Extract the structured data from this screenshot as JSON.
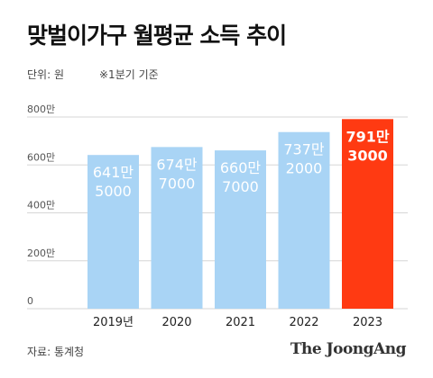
{
  "header": {
    "title": "맞벌이가구 월평균 소득 추이",
    "unit_label": "단위: 원",
    "note_label": "※1분기 기준"
  },
  "footer": {
    "source": "자료: 통계청",
    "brand": "The JoongAng"
  },
  "colors": {
    "bar": "#a9d4f5",
    "highlight": "#ff3a12",
    "bar_label": "#ffffff",
    "grid": "#d6d6d6",
    "axis_text": "#555555"
  },
  "chart_data": {
    "type": "bar",
    "categories": [
      "2019년",
      "2020",
      "2021",
      "2022",
      "2023"
    ],
    "values": [
      6415000,
      6747000,
      6607000,
      7372000,
      7913000
    ],
    "value_labels": [
      [
        "641만",
        "5000"
      ],
      [
        "674만",
        "7000"
      ],
      [
        "660만",
        "7000"
      ],
      [
        "737만",
        "2000"
      ],
      [
        "791만",
        "3000"
      ]
    ],
    "highlight_index": 4,
    "y_ticks": [
      0,
      2000000,
      4000000,
      6000000,
      8000000
    ],
    "y_tick_labels": [
      "0",
      "200만",
      "400만",
      "600만",
      "800만"
    ],
    "ylim": [
      0,
      8000000
    ],
    "grid": true,
    "title": "",
    "xlabel": "",
    "ylabel": ""
  }
}
